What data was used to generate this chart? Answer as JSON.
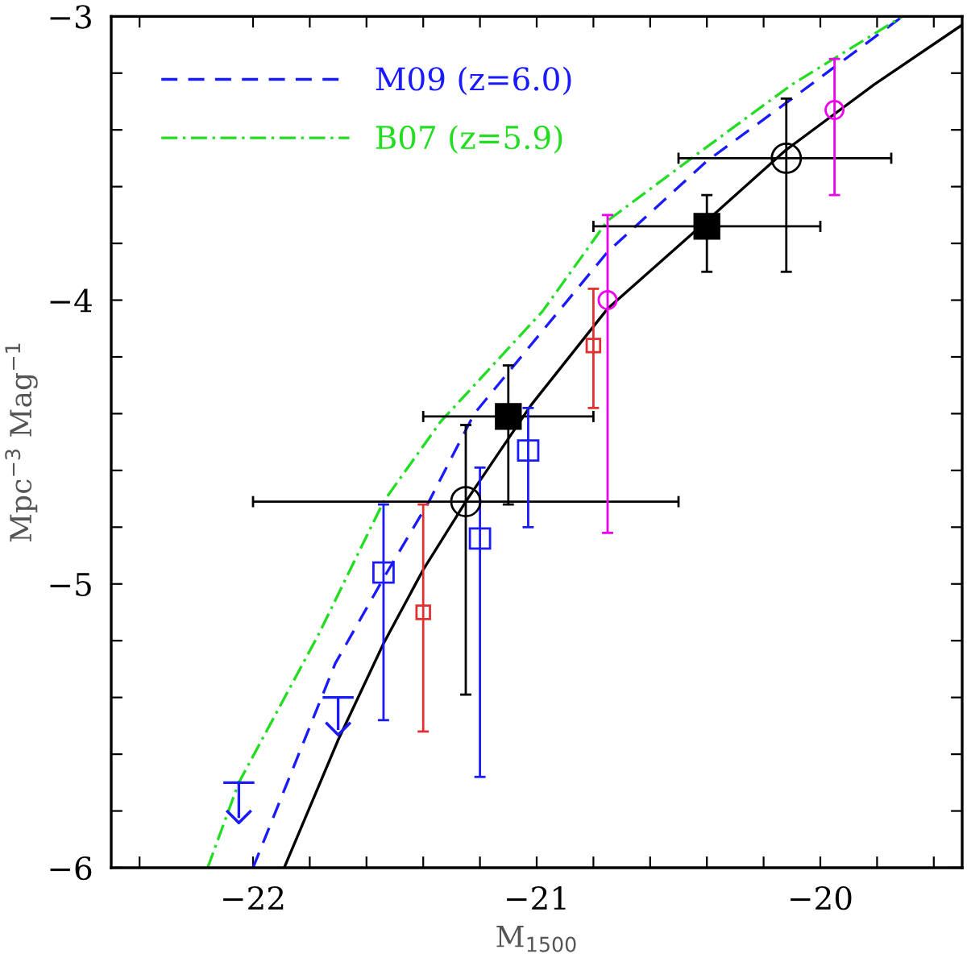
{
  "chart_data": {
    "type": "scatter",
    "xlabel": "M$_{1500}$",
    "ylabel": "Mpc$^{−3}$ Mag$^{−1}$",
    "xlim": [
      -22.5,
      -19.5
    ],
    "ylim": [
      -6,
      -3
    ],
    "xticks": [
      {
        "value": -22.4,
        "label": null
      },
      -22,
      {
        "value": -21.8,
        "label": null
      },
      {
        "value": -21.6,
        "label": null
      },
      {
        "value": -21.4,
        "label": null
      },
      {
        "value": -21.2,
        "label": null
      },
      -21,
      {
        "value": -20.8,
        "label": null
      },
      {
        "value": -20.6,
        "label": null
      },
      {
        "value": -20.4,
        "label": null
      },
      {
        "value": -20.2,
        "label": null
      },
      -20,
      {
        "value": -19.8,
        "label": null
      },
      {
        "value": -19.6,
        "label": null
      }
    ],
    "yticks": [
      -6,
      {
        "value": -5.8,
        "label": null
      },
      {
        "value": -5.6,
        "label": null
      },
      {
        "value": -5.4,
        "label": null
      },
      {
        "value": -5.2,
        "label": null
      },
      -5,
      {
        "value": -4.8,
        "label": null
      },
      {
        "value": -4.6,
        "label": null
      },
      {
        "value": -4.4,
        "label": null
      },
      {
        "value": -4.2,
        "label": null
      },
      -4,
      {
        "value": -3.8,
        "label": null
      },
      {
        "value": -3.6,
        "label": null
      },
      {
        "value": -3.4,
        "label": null
      },
      {
        "value": -3.2,
        "label": null
      },
      -3
    ],
    "grid": false,
    "legend": "top left",
    "series": [
      {
        "type": "line",
        "color": "#000000",
        "line_style": "solid",
        "marker": "none",
        "x": [
          -21.89,
          -21.7,
          -21.54,
          -21.4,
          -21.25,
          -21.02,
          -20.75,
          -20.4,
          -20.12,
          -19.81,
          -19.5
        ],
        "values": [
          -6.0,
          -5.55,
          -5.21,
          -4.95,
          -4.71,
          -4.37,
          -4.03,
          -3.72,
          -3.47,
          -3.24,
          -3.03
        ]
      },
      {
        "type": "line",
        "name": "M09 (z=6.0)",
        "color": "#1a1aff",
        "line_style": "dashed",
        "marker": "none",
        "x": [
          -22.0,
          -21.71,
          -21.54,
          -21.38,
          -21.22,
          -20.75,
          -20.4,
          -20.1,
          -19.71
        ],
        "values": [
          -6.0,
          -5.28,
          -4.98,
          -4.71,
          -4.4,
          -3.83,
          -3.51,
          -3.29,
          -3.0
        ]
      },
      {
        "type": "line",
        "name": "B07 (z=5.9)",
        "color": "#22dd22",
        "line_style": "dashdot",
        "marker": "none",
        "x": [
          -22.16,
          -22.05,
          -21.77,
          -21.54,
          -21.34,
          -20.98,
          -20.75,
          -20.4,
          -20.1,
          -19.71
        ],
        "values": [
          -6.0,
          -5.7,
          -5.18,
          -4.71,
          -4.43,
          -4.04,
          -3.72,
          -3.46,
          -3.24,
          -3.0
        ]
      },
      {
        "color": "#000000",
        "marker": "square",
        "x": [
          -21.1,
          -20.4
        ],
        "values": [
          -4.41,
          -3.74
        ],
        "errors": [
          [
            -4.72,
            -4.23
          ],
          [
            -3.9,
            -3.63
          ]
        ],
        "xerrors": [
          [
            -21.4,
            -20.8
          ],
          [
            -20.8,
            -20.0
          ]
        ]
      },
      {
        "color": "#000000",
        "marker": "circle",
        "x": [
          -21.25,
          -20.12
        ],
        "values": [
          -4.71,
          -3.5
        ],
        "errors": [
          [
            -5.39,
            -4.44
          ],
          [
            -3.9,
            -3.29
          ]
        ],
        "xerrors": [
          [
            -22.0,
            -20.5
          ],
          [
            -20.5,
            -19.75
          ]
        ]
      },
      {
        "color": "#ee00ee",
        "marker": "circle",
        "x": [
          -20.75,
          -19.95
        ],
        "values": [
          -4.0,
          -3.33
        ],
        "errors": [
          [
            -4.82,
            -3.7
          ],
          [
            -3.63,
            -3.15
          ]
        ]
      },
      {
        "color": "#e03030",
        "marker": "square",
        "x": [
          -20.8,
          -21.4
        ],
        "values": [
          -4.16,
          -5.1
        ],
        "errors": [
          [
            -4.38,
            -3.96
          ],
          [
            -5.52,
            -4.72
          ]
        ]
      },
      {
        "color": "#1a1aff",
        "marker": "square",
        "x": [
          -21.03,
          -21.2,
          -21.54
        ],
        "values": [
          -4.53,
          -4.84,
          -4.96
        ],
        "errors": [
          [
            -4.8,
            -4.38
          ],
          [
            -5.68,
            -4.59
          ],
          [
            -5.48,
            -4.72
          ]
        ]
      },
      {
        "color": "#1a1aff",
        "x": [
          -22.05,
          -21.7
        ],
        "values": [
          -5.82,
          -5.51
        ],
        "errors": [
          [
            -5.82,
            -5.7
          ],
          [
            -5.51,
            -5.4
          ]
        ]
      }
    ]
  }
}
